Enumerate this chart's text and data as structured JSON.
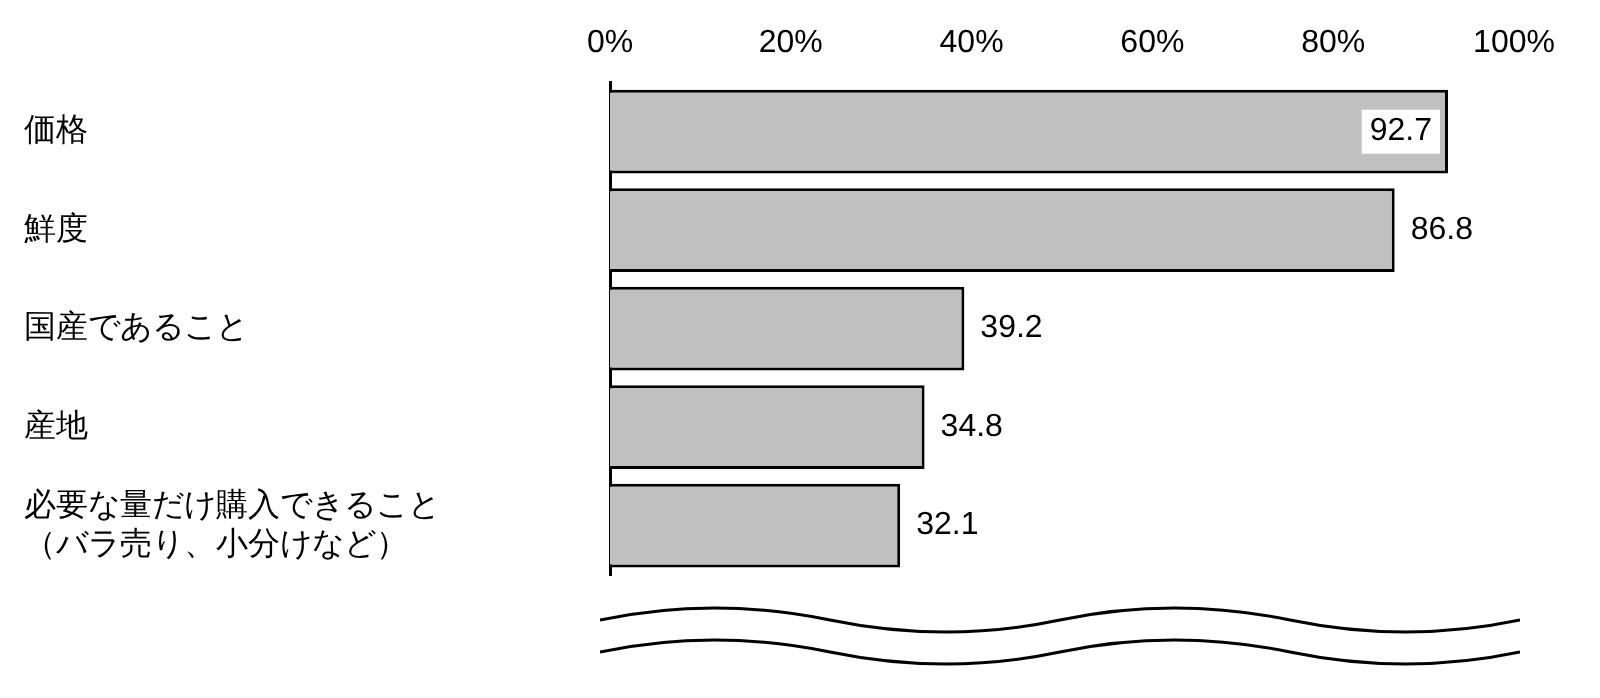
{
  "chart_data": {
    "type": "bar",
    "orientation": "horizontal",
    "categories": [
      "価格",
      "鮮度",
      "国産であること",
      "産地",
      "必要な量だけ購入できること（バラ売り、小分けなど）"
    ],
    "values": [
      92.7,
      86.8,
      39.2,
      34.8,
      32.1
    ],
    "color": "#c0c0c0",
    "xlim": [
      0,
      100
    ],
    "xticks": [
      {
        "value": 0,
        "label": "0%"
      },
      {
        "value": 20,
        "label": "20%"
      },
      {
        "value": 40,
        "label": "40%"
      },
      {
        "value": 60,
        "label": "60%"
      },
      {
        "value": 80,
        "label": "80%"
      },
      {
        "value": 100,
        "label": "100%"
      }
    ],
    "data_labels": true,
    "grid": false,
    "legend": false
  }
}
